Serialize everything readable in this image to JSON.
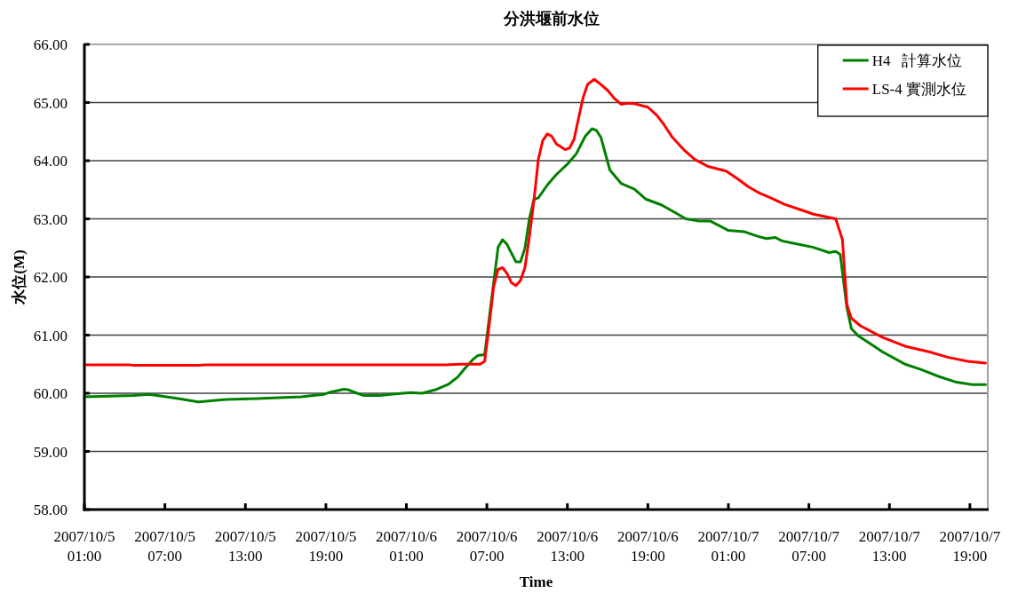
{
  "chart_data": {
    "type": "line",
    "title": "分洪堰前水位",
    "xlabel": "Time",
    "ylabel": "水位(M)",
    "xlim": [
      "2007-10-05T01:00",
      "2007-10-07T20:20"
    ],
    "xticks": [
      {
        "value": "2007-10-05T01:00",
        "label": "2007/10/5\n01:00"
      },
      {
        "value": "2007-10-05T07:00",
        "label": "2007/10/5\n07:00"
      },
      {
        "value": "2007-10-05T13:00",
        "label": "2007/10/5\n13:00"
      },
      {
        "value": "2007-10-05T19:00",
        "label": "2007/10/5\n19:00"
      },
      {
        "value": "2007-10-06T01:00",
        "label": "2007/10/6\n01:00"
      },
      {
        "value": "2007-10-06T07:00",
        "label": "2007/10/6\n07:00"
      },
      {
        "value": "2007-10-06T13:00",
        "label": "2007/10/6\n13:00"
      },
      {
        "value": "2007-10-06T19:00",
        "label": "2007/10/6\n19:00"
      },
      {
        "value": "2007-10-07T01:00",
        "label": "2007/10/7\n01:00"
      },
      {
        "value": "2007-10-07T07:00",
        "label": "2007/10/7\n07:00"
      },
      {
        "value": "2007-10-07T13:00",
        "label": "2007/10/7\n13:00"
      },
      {
        "value": "2007-10-07T19:00",
        "label": "2007/10/7\n19:00"
      }
    ],
    "ylim": [
      58,
      66
    ],
    "yticks": [
      {
        "value": 58,
        "label": "58.00"
      },
      {
        "value": 59,
        "label": "59.00"
      },
      {
        "value": 60,
        "label": "60.00"
      },
      {
        "value": 61,
        "label": "61.00"
      },
      {
        "value": 62,
        "label": "62.00"
      },
      {
        "value": 63,
        "label": "63.00"
      },
      {
        "value": 64,
        "label": "64.00"
      },
      {
        "value": 65,
        "label": "65.00"
      },
      {
        "value": 66,
        "label": "66.00"
      }
    ],
    "grid": "y",
    "legend": "top right",
    "line_style": "solid",
    "series": [
      {
        "name": "H4   計算水位",
        "color": "#008000",
        "x": [
          "2007-10-05T01:00",
          "2007-10-05T04:40",
          "2007-10-05T05:50",
          "2007-10-05T07:20",
          "2007-10-05T08:00",
          "2007-10-05T09:30",
          "2007-10-05T11:20",
          "2007-10-05T13:50",
          "2007-10-05T17:10",
          "2007-10-05T18:50",
          "2007-10-05T19:20",
          "2007-10-05T20:20",
          "2007-10-05T20:40",
          "2007-10-05T21:20",
          "2007-10-05T21:50",
          "2007-10-05T23:00",
          "2007-10-06T00:10",
          "2007-10-06T01:20",
          "2007-10-06T02:10",
          "2007-10-06T03:10",
          "2007-10-06T04:10",
          "2007-10-06T04:50",
          "2007-10-06T05:20",
          "2007-10-06T06:00",
          "2007-10-06T06:20",
          "2007-10-06T06:40",
          "2007-10-06T06:50",
          "2007-10-06T07:50",
          "2007-10-06T08:10",
          "2007-10-06T08:30",
          "2007-10-06T09:10",
          "2007-10-06T09:30",
          "2007-10-06T09:50",
          "2007-10-06T10:10",
          "2007-10-06T10:30",
          "2007-10-06T10:50",
          "2007-10-06T11:30",
          "2007-10-06T12:10",
          "2007-10-06T13:00",
          "2007-10-06T13:40",
          "2007-10-06T14:20",
          "2007-10-06T14:50",
          "2007-10-06T15:10",
          "2007-10-06T15:30",
          "2007-10-06T16:10",
          "2007-10-06T17:00",
          "2007-10-06T18:00",
          "2007-10-06T18:50",
          "2007-10-06T20:00",
          "2007-10-06T21:00",
          "2007-10-06T21:50",
          "2007-10-06T22:50",
          "2007-10-06T23:40",
          "2007-10-07T01:00",
          "2007-10-07T02:10",
          "2007-10-07T03:10",
          "2007-10-07T03:50",
          "2007-10-07T04:30",
          "2007-10-07T05:00",
          "2007-10-07T05:50",
          "2007-10-07T06:30",
          "2007-10-07T07:20",
          "2007-10-07T08:30",
          "2007-10-07T09:00",
          "2007-10-07T09:20",
          "2007-10-07T09:50",
          "2007-10-07T10:10",
          "2007-10-07T10:40",
          "2007-10-07T11:20",
          "2007-10-07T12:30",
          "2007-10-07T14:10",
          "2007-10-07T15:20",
          "2007-10-07T16:40",
          "2007-10-07T18:00",
          "2007-10-07T19:10",
          "2007-10-07T20:10"
        ],
        "values": [
          59.94,
          59.96,
          59.98,
          59.93,
          59.91,
          59.85,
          59.89,
          59.91,
          59.94,
          59.98,
          60.02,
          60.07,
          60.06,
          60.0,
          59.96,
          59.96,
          59.99,
          60.01,
          60.0,
          60.06,
          60.16,
          60.28,
          60.42,
          60.59,
          60.65,
          60.66,
          60.66,
          62.51,
          62.64,
          62.56,
          62.26,
          62.26,
          62.49,
          63.0,
          63.33,
          63.36,
          63.58,
          63.76,
          63.94,
          64.12,
          64.42,
          64.55,
          64.52,
          64.4,
          63.84,
          63.61,
          63.51,
          63.34,
          63.24,
          63.11,
          63.0,
          62.96,
          62.96,
          62.8,
          62.78,
          62.7,
          62.66,
          62.68,
          62.62,
          62.58,
          62.55,
          62.51,
          62.42,
          62.44,
          62.39,
          61.47,
          61.11,
          60.99,
          60.89,
          60.71,
          60.5,
          60.41,
          60.29,
          60.19,
          60.15,
          60.15
        ]
      },
      {
        "name": "LS-4 實測水位",
        "color": "#ff0000",
        "x": [
          "2007-10-05T01:00",
          "2007-10-05T04:20",
          "2007-10-05T04:40",
          "2007-10-05T09:30",
          "2007-10-05T10:00",
          "2007-10-06T04:00",
          "2007-10-06T05:00",
          "2007-10-06T06:30",
          "2007-10-06T06:50",
          "2007-10-06T07:10",
          "2007-10-06T07:30",
          "2007-10-06T07:50",
          "2007-10-06T08:10",
          "2007-10-06T08:30",
          "2007-10-06T08:50",
          "2007-10-06T09:10",
          "2007-10-06T09:30",
          "2007-10-06T09:50",
          "2007-10-06T10:10",
          "2007-10-06T10:30",
          "2007-10-06T10:50",
          "2007-10-06T11:10",
          "2007-10-06T11:30",
          "2007-10-06T11:50",
          "2007-10-06T12:10",
          "2007-10-06T12:50",
          "2007-10-06T13:10",
          "2007-10-06T13:30",
          "2007-10-06T13:50",
          "2007-10-06T14:10",
          "2007-10-06T14:30",
          "2007-10-06T15:00",
          "2007-10-06T15:20",
          "2007-10-06T16:00",
          "2007-10-06T16:30",
          "2007-10-06T17:00",
          "2007-10-06T17:30",
          "2007-10-06T18:00",
          "2007-10-06T19:00",
          "2007-10-06T19:40",
          "2007-10-06T20:10",
          "2007-10-06T20:50",
          "2007-10-06T21:40",
          "2007-10-06T22:30",
          "2007-10-06T23:30",
          "2007-10-07T00:50",
          "2007-10-07T01:40",
          "2007-10-07T02:30",
          "2007-10-07T03:20",
          "2007-10-07T04:20",
          "2007-10-07T05:10",
          "2007-10-07T06:20",
          "2007-10-07T07:20",
          "2007-10-07T09:00",
          "2007-10-07T09:30",
          "2007-10-07T09:50",
          "2007-10-07T10:10",
          "2007-10-07T10:50",
          "2007-10-07T12:30",
          "2007-10-07T14:10",
          "2007-10-07T16:00",
          "2007-10-07T17:20",
          "2007-10-07T18:50",
          "2007-10-07T20:10"
        ],
        "values": [
          60.49,
          60.49,
          60.48,
          60.48,
          60.49,
          60.49,
          60.5,
          60.5,
          60.55,
          61.16,
          61.83,
          62.13,
          62.16,
          62.06,
          61.9,
          61.85,
          61.94,
          62.16,
          62.69,
          63.3,
          64.02,
          64.35,
          64.46,
          64.42,
          64.29,
          64.19,
          64.22,
          64.37,
          64.73,
          65.08,
          65.31,
          65.4,
          65.34,
          65.21,
          65.07,
          64.97,
          64.99,
          64.98,
          64.92,
          64.78,
          64.63,
          64.4,
          64.19,
          64.02,
          63.9,
          63.82,
          63.69,
          63.55,
          63.44,
          63.34,
          63.25,
          63.16,
          63.08,
          63.0,
          62.64,
          61.52,
          61.29,
          61.16,
          60.96,
          60.81,
          60.71,
          60.62,
          60.55,
          60.52
        ]
      }
    ]
  }
}
